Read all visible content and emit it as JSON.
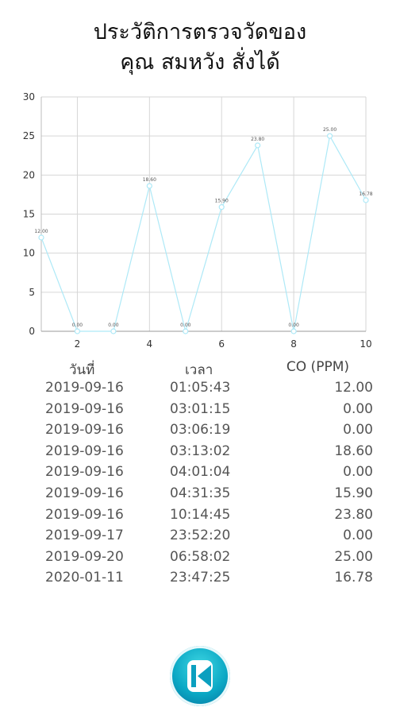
{
  "title": {
    "line1": "ประวัติการตรวจวัดของ",
    "line2": "คุณ สมหวัง สั่งได้"
  },
  "chart_data": {
    "type": "line",
    "x": [
      1,
      2,
      3,
      4,
      5,
      6,
      7,
      8,
      9,
      10
    ],
    "values": [
      12.0,
      0.0,
      0.0,
      18.6,
      0.0,
      15.9,
      23.8,
      0.0,
      25.0,
      16.78
    ],
    "point_labels": [
      "12.00",
      "0.00",
      "0.00",
      "18.60",
      "0.00",
      "15.90",
      "23.80",
      "0.00",
      "25.00",
      "16.78"
    ],
    "x_ticks": [
      2,
      4,
      6,
      8,
      10
    ],
    "y_ticks": [
      0,
      5,
      10,
      15,
      20,
      25,
      30
    ],
    "xlim": [
      1,
      10
    ],
    "ylim": [
      0,
      30
    ],
    "grid": true,
    "line_color": "#aee9f7",
    "title": "",
    "xlabel": "",
    "ylabel": ""
  },
  "table": {
    "headers": {
      "date": "วันที่",
      "time": "เวลา",
      "co": "CO (PPM)"
    },
    "rows": [
      {
        "date": "2019-09-16",
        "time": "01:05:43",
        "co": "12.00"
      },
      {
        "date": "2019-09-16",
        "time": "03:01:15",
        "co": "0.00"
      },
      {
        "date": "2019-09-16",
        "time": "03:06:19",
        "co": "0.00"
      },
      {
        "date": "2019-09-16",
        "time": "03:13:02",
        "co": "18.60"
      },
      {
        "date": "2019-09-16",
        "time": "04:01:04",
        "co": "0.00"
      },
      {
        "date": "2019-09-16",
        "time": "04:31:35",
        "co": "15.90"
      },
      {
        "date": "2019-09-16",
        "time": "10:14:45",
        "co": "23.80"
      },
      {
        "date": "2019-09-17",
        "time": "23:52:20",
        "co": "0.00"
      },
      {
        "date": "2019-09-20",
        "time": "06:58:02",
        "co": "25.00"
      },
      {
        "date": "2020-01-11",
        "time": "23:47:25",
        "co": "16.78"
      }
    ]
  },
  "back_button": {
    "icon": "skip-back-icon",
    "color": "#0aa7c4"
  }
}
